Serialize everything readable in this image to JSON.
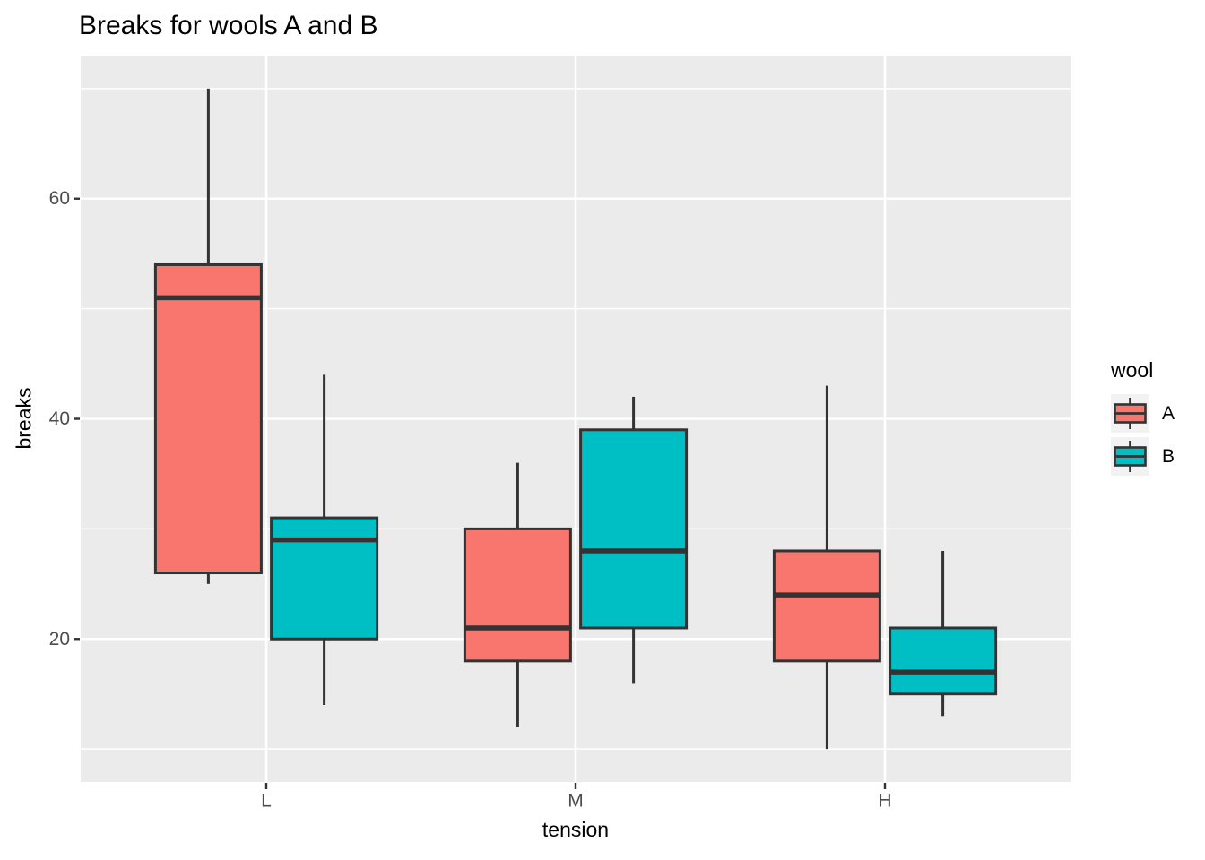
{
  "chart_data": {
    "type": "boxplot",
    "title": "Breaks for wools A and B",
    "xlabel": "tension",
    "ylabel": "breaks",
    "categories": [
      "L",
      "M",
      "H"
    ],
    "series": [
      {
        "name": "A",
        "color": "#F8766D",
        "boxes": [
          {
            "category": "L",
            "whisker_low": 25,
            "q1": 26,
            "median": 51,
            "q3": 54,
            "whisker_high": 70
          },
          {
            "category": "M",
            "whisker_low": 12,
            "q1": 18,
            "median": 21,
            "q3": 30,
            "whisker_high": 36
          },
          {
            "category": "H",
            "whisker_low": 10,
            "q1": 18,
            "median": 24,
            "q3": 28,
            "whisker_high": 43
          }
        ]
      },
      {
        "name": "B",
        "color": "#00BFC4",
        "boxes": [
          {
            "category": "L",
            "whisker_low": 14,
            "q1": 20,
            "median": 29,
            "q3": 31,
            "whisker_high": 44
          },
          {
            "category": "M",
            "whisker_low": 16,
            "q1": 21,
            "median": 28,
            "q3": 39,
            "whisker_high": 42
          },
          {
            "category": "H",
            "whisker_low": 13,
            "q1": 15,
            "median": 17,
            "q3": 21,
            "whisker_high": 28
          }
        ]
      }
    ],
    "y_ticks": [
      20,
      40,
      60
    ],
    "y_minor_ticks": [
      10,
      30,
      50,
      70
    ],
    "ylim": [
      7,
      73
    ],
    "grid": "major-and-minor",
    "legend_position": "right",
    "colors": {
      "panel_bg": "#EBEBEB",
      "grid": "#FFFFFF",
      "box_outline": "#333333",
      "tick_mark": "#333333",
      "tick_text": "#4D4D4D",
      "legend_key_bg": "#F2F2F2"
    }
  },
  "legend": {
    "title": "wool",
    "entries": [
      {
        "label": "A"
      },
      {
        "label": "B"
      }
    ]
  }
}
